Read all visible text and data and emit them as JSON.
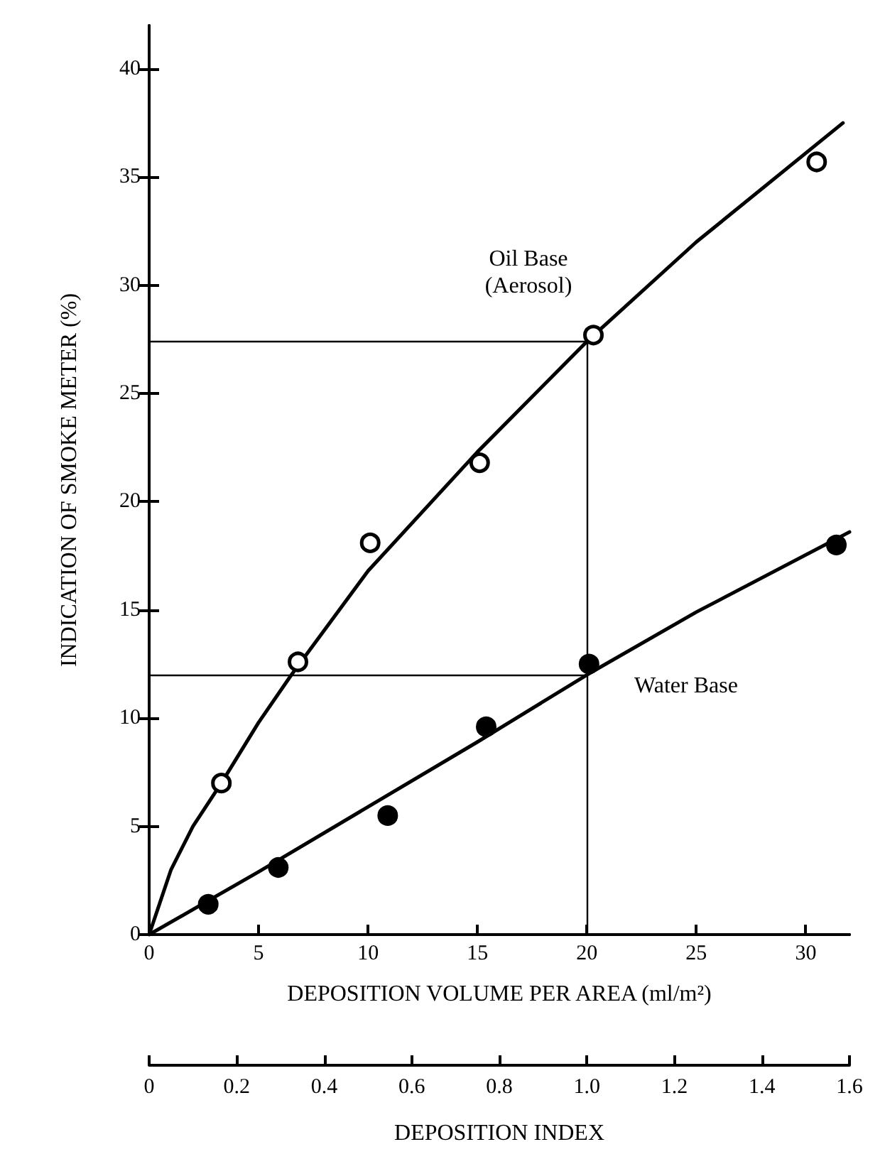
{
  "chart_data": {
    "type": "scatter",
    "xlabel": "DEPOSITION VOLUME PER AREA (ml/m²)",
    "ylabel": "INDICATION OF SMOKE METER (%)",
    "x2label": "DEPOSITION INDEX",
    "xlim": [
      0,
      32
    ],
    "xticks": [
      0,
      5,
      10,
      15,
      20,
      25,
      30
    ],
    "x2lim": [
      0,
      1.6
    ],
    "x2ticks": [
      0,
      0.2,
      0.4,
      0.6,
      0.8,
      {
        "value": 1,
        "label": "1.0"
      },
      1.2,
      1.4,
      1.6
    ],
    "ylim": [
      0,
      42
    ],
    "yticks": [
      0,
      5,
      10,
      15,
      20,
      25,
      30,
      35,
      40
    ],
    "marker": "circle",
    "series": [
      {
        "color": "#ffffff",
        "x": [
          3.3,
          6.8,
          10.1,
          15.1,
          20.3,
          30.5
        ],
        "values": [
          7.0,
          12.6,
          18.1,
          21.8,
          27.7,
          35.7
        ]
      },
      {
        "color": "#000000",
        "x": [
          2.7,
          5.9,
          10.9,
          15.4,
          20.1,
          31.4
        ],
        "values": [
          1.4,
          3.1,
          5.5,
          9.6,
          12.5,
          18.0
        ]
      },
      {
        "type": "line",
        "color": "#000000",
        "marker": "none",
        "x": [
          0,
          1,
          2,
          3.3,
          5,
          6.5,
          10,
          15,
          20,
          25,
          31.7
        ],
        "values": [
          0,
          3.0,
          5.0,
          7.0,
          9.8,
          12.0,
          16.8,
          22.3,
          27.4,
          32.0,
          37.5
        ]
      },
      {
        "type": "line",
        "color": "#000000",
        "marker": "none",
        "x": [
          0,
          5,
          10,
          15,
          20,
          25,
          32
        ],
        "values": [
          0,
          2.9,
          5.9,
          8.9,
          12.0,
          14.9,
          18.6
        ]
      }
    ],
    "ref_lines": [
      {
        "axis": "y",
        "value": 27.4
      },
      {
        "axis": "y",
        "value": 12.0
      },
      {
        "axis": "x",
        "value": 20
      }
    ],
    "annotations": [
      "Oil Base\n(Aerosol)",
      "Water Base"
    ]
  }
}
